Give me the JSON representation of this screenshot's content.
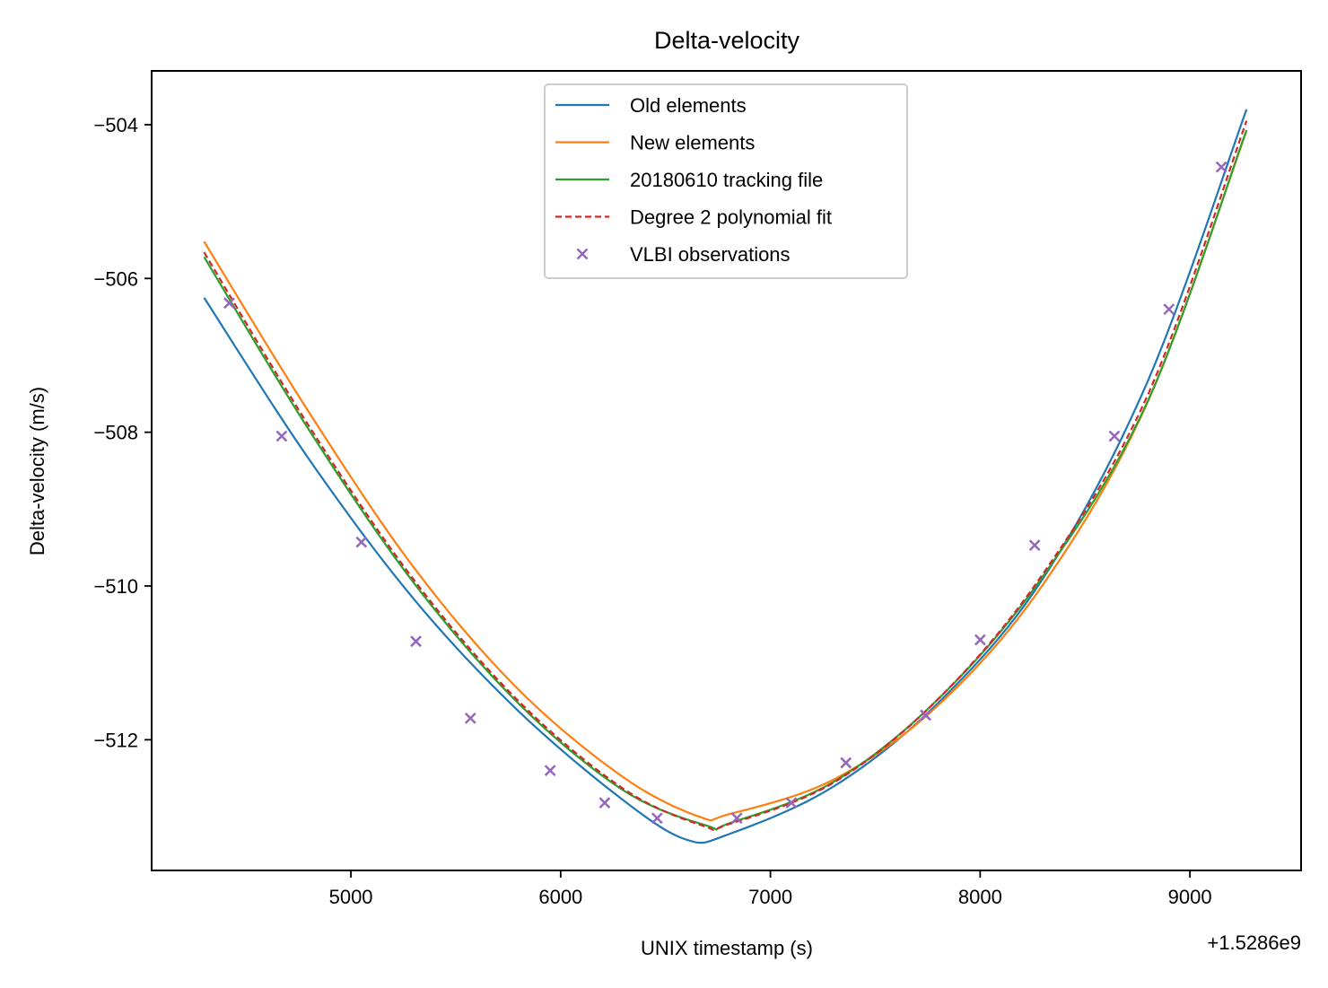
{
  "chart_data": {
    "type": "line",
    "title": "Delta-velocity",
    "xlabel": "UNIX timestamp (s)",
    "ylabel": "Delta-velocity (m/s)",
    "x_offset_label": "+1.5286e9",
    "xlim": [
      1528604050,
      1528609530
    ],
    "ylim": [
      -513.7,
      -503.3
    ],
    "x_ticks": [
      1528605000,
      1528606000,
      1528607000,
      1528608000,
      1528609000
    ],
    "x_tick_labels": [
      "5000",
      "6000",
      "7000",
      "8000",
      "9000"
    ],
    "y_ticks": [
      -504,
      -506,
      -508,
      -510,
      -512
    ],
    "y_tick_labels": [
      "−504",
      "−506",
      "−508",
      "−510",
      "−512"
    ],
    "grid": false,
    "legend_position": "upper center",
    "series": [
      {
        "name": "Old elements",
        "style": "solid",
        "color": "#1f77b4",
        "x": [
          1528604300,
          1528604800,
          1528605300,
          1528605800,
          1528606300,
          1528606600,
          1528606800,
          1528607300,
          1528607800,
          1528608300,
          1528608800,
          1528609270
        ],
        "y": [
          -506.25,
          -508.35,
          -510.17,
          -511.63,
          -512.79,
          -513.3,
          -513.23,
          -512.61,
          -511.52,
          -509.9,
          -507.33,
          -503.8
        ]
      },
      {
        "name": "New elements",
        "style": "solid",
        "color": "#ff7f0e",
        "x": [
          1528604300,
          1528604800,
          1528605300,
          1528605800,
          1528606300,
          1528606660,
          1528606800,
          1528607300,
          1528607800,
          1528608300,
          1528608800,
          1528609270
        ],
        "y": [
          -505.52,
          -507.74,
          -509.76,
          -511.35,
          -512.49,
          -513.0,
          -512.97,
          -512.52,
          -511.55,
          -509.98,
          -507.6,
          -504.08
        ]
      },
      {
        "name": "20180610 tracking file",
        "style": "solid",
        "color": "#2ca02c",
        "x": [
          1528604300,
          1528604800,
          1528605300,
          1528605800,
          1528606300,
          1528606700,
          1528606800,
          1528607300,
          1528607800,
          1528608300,
          1528608800,
          1528609270
        ],
        "y": [
          -505.72,
          -507.97,
          -509.96,
          -511.53,
          -512.66,
          -513.12,
          -513.09,
          -512.55,
          -511.47,
          -509.87,
          -507.59,
          -504.07
        ]
      },
      {
        "name": "Degree 2 polynomial fit",
        "style": "dashed",
        "color": "#d62728",
        "x": [
          1528604300,
          1528604800,
          1528605300,
          1528605800,
          1528606300,
          1528606680,
          1528606800,
          1528607300,
          1528607800,
          1528608300,
          1528608800,
          1528609270
        ],
        "y": [
          -505.66,
          -507.92,
          -509.92,
          -511.5,
          -512.64,
          -513.12,
          -513.1,
          -512.56,
          -511.47,
          -509.84,
          -507.51,
          -503.95
        ]
      },
      {
        "name": "VLBI observations",
        "style": "marker-x",
        "color": "#9467bd",
        "x": [
          1528604420,
          1528604670,
          1528605050,
          1528605310,
          1528605570,
          1528605950,
          1528606210,
          1528606460,
          1528606840,
          1528607100,
          1528607360,
          1528607740,
          1528608000,
          1528608260,
          1528608640,
          1528608900,
          1528609150
        ],
        "y": [
          -506.32,
          -508.05,
          -509.43,
          -510.72,
          -511.72,
          -512.4,
          -512.82,
          -513.02,
          -513.02,
          -512.82,
          -512.3,
          -511.68,
          -510.7,
          -509.47,
          -508.05,
          -506.4,
          -504.55
        ]
      }
    ]
  }
}
